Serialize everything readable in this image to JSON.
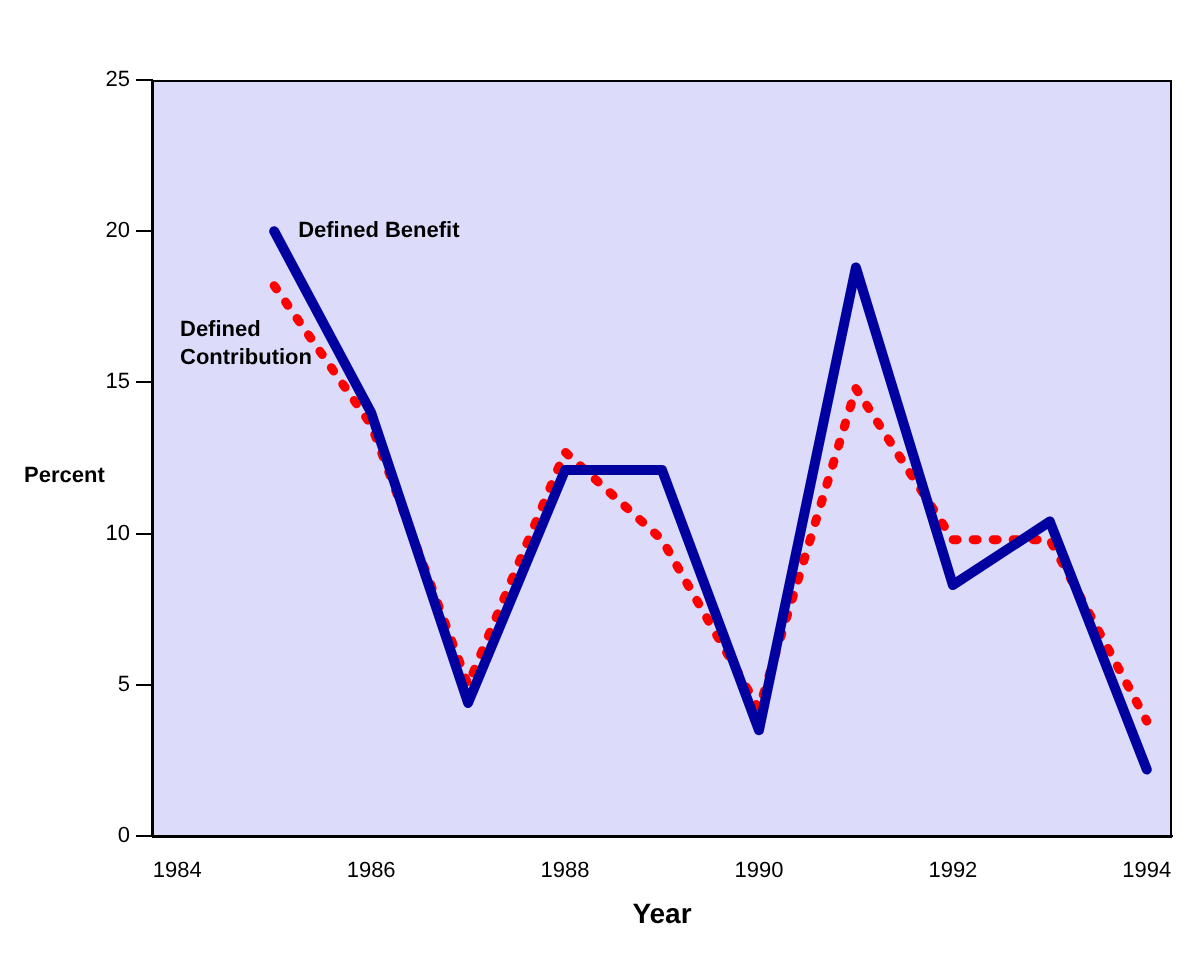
{
  "chart_data": {
    "type": "line",
    "xlabel": "Year",
    "ylabel": "Percent",
    "x": [
      1985,
      1986,
      1987,
      1988,
      1989,
      1990,
      1991,
      1992,
      1993,
      1994
    ],
    "series": [
      {
        "name": "Defined Benefit",
        "color": "#0000a0",
        "line_style": "solid",
        "values": [
          20.0,
          14.0,
          4.4,
          12.1,
          12.1,
          3.5,
          18.8,
          8.3,
          10.4,
          2.2
        ]
      },
      {
        "name": "Defined Contribution",
        "color": "#ff0000",
        "line_style": "dotted",
        "values": [
          18.2,
          13.6,
          5.0,
          12.7,
          9.8,
          4.2,
          14.8,
          9.8,
          9.8,
          3.8
        ]
      }
    ],
    "xlim": [
      1983.74,
      1994.26
    ],
    "xticks": [
      1984,
      1986,
      1988,
      1990,
      1992,
      1994
    ],
    "ylim": [
      0,
      25
    ],
    "yticks": [
      0,
      5,
      10,
      15,
      20,
      25
    ],
    "grid": false,
    "legend": false,
    "marker": "none"
  }
}
